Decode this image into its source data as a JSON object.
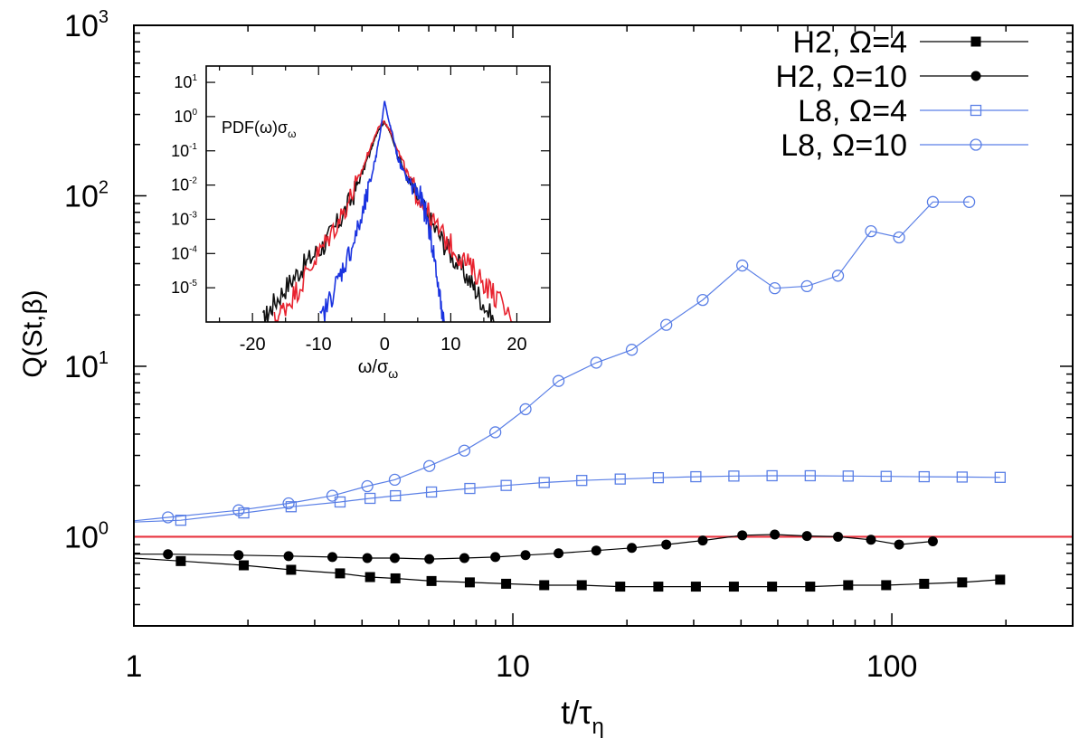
{
  "chart_data": [
    {
      "type": "line",
      "xscale": "log",
      "yscale": "log",
      "xlabel": "t/τ",
      "xlabel_sub": "η",
      "ylabel": "Q(St,β)",
      "xlim": [
        1,
        300
      ],
      "ylim": [
        0.3,
        1000
      ],
      "xticks": [
        {
          "value": 1,
          "label": "1"
        },
        {
          "value": 10,
          "label": "10"
        },
        {
          "value": 100,
          "label": "100"
        }
      ],
      "yticks": [
        {
          "value": 1,
          "base": "10",
          "exp": "0"
        },
        {
          "value": 10,
          "base": "10",
          "exp": "1"
        },
        {
          "value": 100,
          "base": "10",
          "exp": "2"
        },
        {
          "value": 1000,
          "base": "10",
          "exp": "3"
        }
      ],
      "legend_position": "top-right",
      "reference_line": {
        "y": 1.0,
        "color": "#e8333f"
      },
      "series": [
        {
          "name": "H2, Ω=4",
          "color": "#000000",
          "marker": "filled-square",
          "points": [
            [
              1,
              0.75
            ],
            [
              1.33,
              0.72
            ],
            [
              1.95,
              0.68
            ],
            [
              2.6,
              0.64
            ],
            [
              3.5,
              0.61
            ],
            [
              4.2,
              0.58
            ],
            [
              4.9,
              0.57
            ],
            [
              6.1,
              0.55
            ],
            [
              7.7,
              0.54
            ],
            [
              9.6,
              0.53
            ],
            [
              12.1,
              0.52
            ],
            [
              15.2,
              0.52
            ],
            [
              19.2,
              0.51
            ],
            [
              24.2,
              0.51
            ],
            [
              30.4,
              0.51
            ],
            [
              38.3,
              0.51
            ],
            [
              48.3,
              0.51
            ],
            [
              60.9,
              0.51
            ],
            [
              76.7,
              0.52
            ],
            [
              96.6,
              0.52
            ],
            [
              121.7,
              0.53
            ],
            [
              153.3,
              0.54
            ],
            [
              193.1,
              0.56
            ]
          ]
        },
        {
          "name": "H2, Ω=10",
          "color": "#000000",
          "marker": "filled-circle",
          "points": [
            [
              1,
              0.79
            ],
            [
              1.23,
              0.79
            ],
            [
              1.89,
              0.78
            ],
            [
              2.56,
              0.77
            ],
            [
              3.34,
              0.76
            ],
            [
              4.13,
              0.75
            ],
            [
              4.88,
              0.75
            ],
            [
              6.02,
              0.74
            ],
            [
              7.45,
              0.75
            ],
            [
              8.99,
              0.76
            ],
            [
              10.8,
              0.78
            ],
            [
              13.2,
              0.8
            ],
            [
              16.6,
              0.83
            ],
            [
              20.6,
              0.86
            ],
            [
              25.4,
              0.9
            ],
            [
              31.7,
              0.95
            ],
            [
              40.3,
              1.02
            ],
            [
              49.1,
              1.03
            ],
            [
              59.7,
              1.01
            ],
            [
              72.1,
              1.0
            ],
            [
              88.1,
              0.96
            ],
            [
              104.5,
              0.9
            ],
            [
              128.3,
              0.94
            ]
          ]
        },
        {
          "name": "L8, Ω=4",
          "color": "#5a7fe6",
          "marker": "open-square",
          "points": [
            [
              1,
              1.22
            ],
            [
              1.33,
              1.25
            ],
            [
              1.95,
              1.38
            ],
            [
              2.6,
              1.5
            ],
            [
              3.5,
              1.6
            ],
            [
              4.2,
              1.68
            ],
            [
              4.9,
              1.74
            ],
            [
              6.1,
              1.83
            ],
            [
              7.7,
              1.92
            ],
            [
              9.6,
              2.0
            ],
            [
              12.1,
              2.08
            ],
            [
              15.2,
              2.14
            ],
            [
              19.2,
              2.18
            ],
            [
              24.2,
              2.22
            ],
            [
              30.4,
              2.25
            ],
            [
              38.3,
              2.27
            ],
            [
              48.3,
              2.28
            ],
            [
              60.9,
              2.28
            ],
            [
              76.7,
              2.27
            ],
            [
              96.6,
              2.26
            ],
            [
              121.7,
              2.25
            ],
            [
              153.3,
              2.24
            ],
            [
              193.1,
              2.23
            ]
          ]
        },
        {
          "name": "L8, Ω=10",
          "color": "#5a7fe6",
          "marker": "open-circle",
          "points": [
            [
              1,
              1.24
            ],
            [
              1.23,
              1.3
            ],
            [
              1.89,
              1.43
            ],
            [
              2.56,
              1.57
            ],
            [
              3.34,
              1.74
            ],
            [
              4.13,
              1.98
            ],
            [
              4.88,
              2.16
            ],
            [
              6.02,
              2.6
            ],
            [
              7.45,
              3.2
            ],
            [
              8.99,
              4.1
            ],
            [
              10.8,
              5.6
            ],
            [
              13.2,
              8.2
            ],
            [
              16.6,
              10.5
            ],
            [
              20.6,
              12.5
            ],
            [
              25.4,
              17.5
            ],
            [
              31.7,
              24.5
            ],
            [
              40.3,
              39.0
            ],
            [
              49.1,
              28.7
            ],
            [
              59.7,
              29.5
            ],
            [
              72.1,
              34.0
            ],
            [
              88.1,
              62.0
            ],
            [
              104.5,
              57.0
            ],
            [
              128.3,
              92.0
            ],
            [
              160.0,
              92.0
            ]
          ]
        }
      ]
    },
    {
      "type": "line",
      "yscale": "log",
      "title": "PDF(ω)σ",
      "title_sub": "ω",
      "xlabel": "ω/σ",
      "xlabel_sub": "ω",
      "xlim": [
        -27,
        25
      ],
      "ylim": [
        1e-06,
        30
      ],
      "xticks": [
        {
          "value": -20,
          "label": "-20"
        },
        {
          "value": -10,
          "label": "-10"
        },
        {
          "value": 0,
          "label": "0"
        },
        {
          "value": 10,
          "label": "10"
        },
        {
          "value": 20,
          "label": "20"
        }
      ],
      "yticks": [
        {
          "value": 1e-05,
          "base": "10",
          "exp": "-5"
        },
        {
          "value": 0.0001,
          "base": "10",
          "exp": "-4"
        },
        {
          "value": 0.001,
          "base": "10",
          "exp": "-3"
        },
        {
          "value": 0.01,
          "base": "10",
          "exp": "-2"
        },
        {
          "value": 0.1,
          "base": "10",
          "exp": "-1"
        },
        {
          "value": 1,
          "base": "10",
          "exp": "0"
        },
        {
          "value": 10,
          "base": "10",
          "exp": "1"
        }
      ],
      "series": [
        {
          "color": "#111111",
          "points": [
            [
              -18.4,
              1e-06
            ],
            [
              -17,
              3e-06
            ],
            [
              -15,
              1e-05
            ],
            [
              -13,
              3e-05
            ],
            [
              -11,
              8e-05
            ],
            [
              -9,
              0.0002
            ],
            [
              -7,
              0.0008
            ],
            [
              -5,
              0.004
            ],
            [
              -3.5,
              0.02
            ],
            [
              -2,
              0.12
            ],
            [
              -1,
              0.4
            ],
            [
              0,
              0.7
            ],
            [
              0.8,
              0.35
            ],
            [
              2,
              0.08
            ],
            [
              3.5,
              0.015
            ],
            [
              5,
              0.004
            ],
            [
              7,
              0.0008
            ],
            [
              9,
              0.0002
            ],
            [
              11,
              5e-05
            ],
            [
              13,
              1.5e-05
            ],
            [
              14.5,
              5e-06
            ],
            [
              16.5,
              1e-06
            ]
          ]
        },
        {
          "color": "#e8232f",
          "points": [
            [
              -16.7,
              1e-06
            ],
            [
              -15,
              3e-06
            ],
            [
              -13,
              1e-05
            ],
            [
              -11,
              5e-05
            ],
            [
              -9,
              0.0002
            ],
            [
              -7,
              0.0009
            ],
            [
              -5,
              0.005
            ],
            [
              -3.5,
              0.025
            ],
            [
              -2,
              0.15
            ],
            [
              -1,
              0.45
            ],
            [
              -0.2,
              0.75
            ],
            [
              0.8,
              0.4
            ],
            [
              2,
              0.1
            ],
            [
              3.5,
              0.02
            ],
            [
              5,
              0.005
            ],
            [
              7,
              0.001
            ],
            [
              9,
              0.0003
            ],
            [
              11,
              0.0001
            ],
            [
              13,
              4e-05
            ],
            [
              15,
              1.5e-05
            ],
            [
              17,
              5e-06
            ],
            [
              19.4,
              1e-06
            ]
          ]
        },
        {
          "color": "#1a33e0",
          "points": [
            [
              -9.8,
              1e-06
            ],
            [
              -8,
              6e-06
            ],
            [
              -6.5,
              3e-05
            ],
            [
              -5,
              0.00015
            ],
            [
              -3.5,
              0.001
            ],
            [
              -2.5,
              0.006
            ],
            [
              -1.5,
              0.05
            ],
            [
              -0.7,
              0.3
            ],
            [
              0,
              3.0
            ],
            [
              0.5,
              0.9
            ],
            [
              1.2,
              0.3
            ],
            [
              2,
              0.06
            ],
            [
              3,
              0.02
            ],
            [
              4.5,
              0.008
            ],
            [
              5.5,
              0.004
            ],
            [
              6.5,
              0.0009
            ],
            [
              7.5,
              8e-05
            ],
            [
              8.5,
              3e-06
            ],
            [
              9,
              1e-06
            ]
          ]
        }
      ]
    }
  ]
}
